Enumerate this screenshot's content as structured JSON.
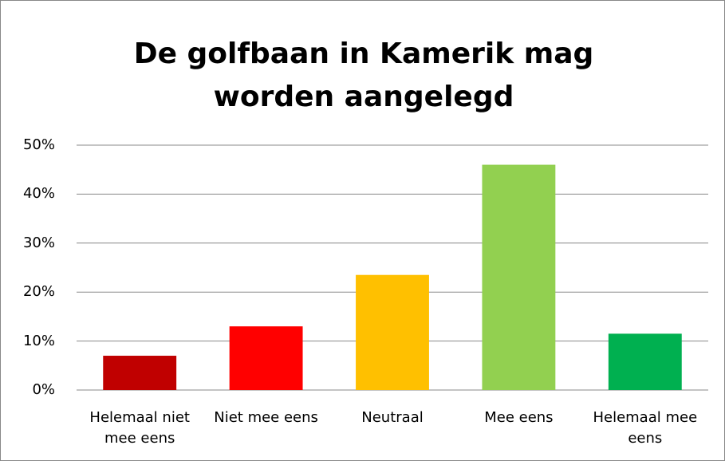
{
  "chart_data": {
    "type": "bar",
    "title": "De golfbaan in Kamerik mag worden aangelegd",
    "categories": [
      "Helemaal niet mee eens",
      "Niet mee eens",
      "Neutraal",
      "Mee eens",
      "Helemaal mee eens"
    ],
    "values": [
      7,
      13,
      23.5,
      46,
      11.5
    ],
    "colors": [
      "#c00000",
      "#ff0000",
      "#ffc000",
      "#92d050",
      "#00b050"
    ],
    "ylim": [
      0,
      50
    ],
    "yticks": [
      {
        "value": 0,
        "label": "0%"
      },
      {
        "value": 10,
        "label": "10%"
      },
      {
        "value": 20,
        "label": "20%"
      },
      {
        "value": 30,
        "label": "30%"
      },
      {
        "value": 40,
        "label": "40%"
      },
      {
        "value": 50,
        "label": "50%"
      }
    ],
    "grid": true
  }
}
